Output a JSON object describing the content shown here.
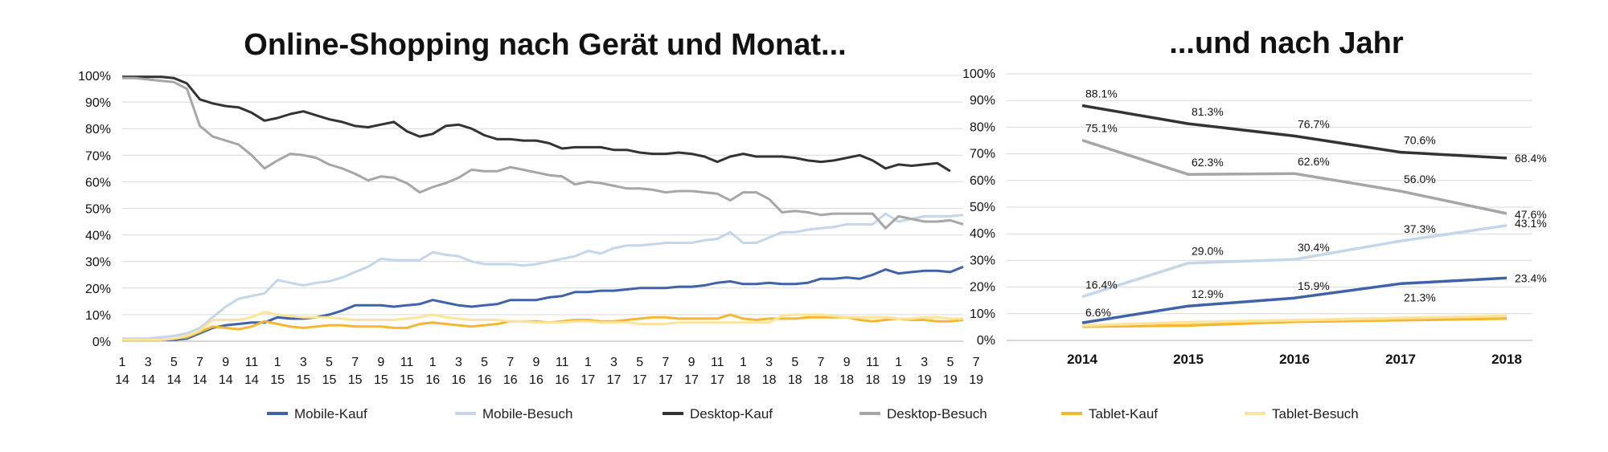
{
  "chart_data": [
    {
      "type": "line",
      "title": "Online-Shopping nach Gerät und Monat...",
      "xlabel": "",
      "ylabel": "",
      "ylim": [
        0,
        100
      ],
      "y_tick_labels": [
        "0%",
        "10%",
        "20%",
        "30%",
        "40%",
        "50%",
        "60%",
        "70%",
        "80%",
        "90%",
        "100%"
      ],
      "x_tick_labels": [
        [
          "1",
          "14"
        ],
        [
          "3",
          "14"
        ],
        [
          "5",
          "14"
        ],
        [
          "7",
          "14"
        ],
        [
          "9",
          "14"
        ],
        [
          "11",
          "14"
        ],
        [
          "1",
          "15"
        ],
        [
          "3",
          "15"
        ],
        [
          "5",
          "15"
        ],
        [
          "7",
          "15"
        ],
        [
          "9",
          "15"
        ],
        [
          "11",
          "15"
        ],
        [
          "1",
          "16"
        ],
        [
          "3",
          "16"
        ],
        [
          "5",
          "16"
        ],
        [
          "7",
          "16"
        ],
        [
          "9",
          "16"
        ],
        [
          "11",
          "16"
        ],
        [
          "1",
          "17"
        ],
        [
          "3",
          "17"
        ],
        [
          "5",
          "17"
        ],
        [
          "7",
          "17"
        ],
        [
          "9",
          "17"
        ],
        [
          "11",
          "17"
        ],
        [
          "1",
          "18"
        ],
        [
          "3",
          "18"
        ],
        [
          "5",
          "18"
        ],
        [
          "7",
          "18"
        ],
        [
          "9",
          "18"
        ],
        [
          "11",
          "18"
        ],
        [
          "1",
          "19"
        ],
        [
          "3",
          "19"
        ],
        [
          "5",
          "19"
        ],
        [
          "7",
          "19"
        ]
      ],
      "grid": "horizontal",
      "series": [
        {
          "name": "Mobile-Kauf",
          "color": "#3f62a8",
          "values": [
            0.5,
            0.5,
            0.5,
            0.5,
            0.5,
            1,
            3,
            5,
            6,
            6.5,
            7,
            7,
            9,
            8.5,
            8.5,
            9,
            10,
            11.5,
            13.5,
            13.5,
            13.5,
            13,
            13.5,
            14,
            15.5,
            14.5,
            13.5,
            13,
            13.5,
            14,
            15.5,
            15.5,
            15.5,
            16.5,
            17,
            18.5,
            18.5,
            19,
            19,
            19.5,
            20,
            20,
            20,
            20.5,
            20.5,
            21,
            22,
            22.5,
            21.5,
            21.5,
            22,
            21.5,
            21.5,
            22,
            23.5,
            23.5,
            24,
            23.5,
            25,
            27,
            25.5,
            26,
            26.5,
            26.5,
            26,
            28
          ]
        },
        {
          "name": "Mobile-Besuch",
          "color": "#c5d5ea",
          "values": [
            1,
            1,
            1,
            1.5,
            2,
            3,
            5,
            9,
            13,
            16,
            17,
            18,
            23,
            22,
            21,
            22,
            22.5,
            24,
            26,
            28,
            31,
            30.5,
            30.5,
            30.5,
            33.5,
            32.5,
            32,
            30,
            29,
            29,
            29,
            28.5,
            29,
            30,
            31,
            32,
            34,
            33,
            35,
            36,
            36,
            36.5,
            37,
            37,
            37,
            38,
            38.5,
            41,
            37,
            37,
            39,
            41,
            41,
            42,
            42.5,
            43,
            44,
            44,
            44,
            48,
            45,
            46,
            47,
            47,
            47,
            47.5
          ]
        },
        {
          "name": "Desktop-Kauf",
          "color": "#333333",
          "values": [
            99.5,
            99.5,
            99.5,
            99.5,
            99,
            97,
            91,
            89.5,
            88.5,
            88,
            86,
            83,
            84,
            85.5,
            86.5,
            85,
            83.5,
            82.5,
            81,
            80.5,
            81.5,
            82.5,
            79,
            77,
            78,
            81,
            81.5,
            80,
            77.5,
            76,
            76,
            75.5,
            75.5,
            74.5,
            72.5,
            73,
            73,
            73,
            72,
            72,
            71,
            70.5,
            70.5,
            71,
            70.5,
            69.5,
            67.5,
            69.5,
            70.5,
            69.5,
            69.5,
            69.5,
            69,
            68,
            67.5,
            68,
            69,
            70,
            68,
            65,
            66.5,
            66,
            66.5,
            67,
            64
          ]
        },
        {
          "name": "Desktop-Besuch",
          "color": "#a6a6a6",
          "values": [
            99,
            99,
            98.5,
            98,
            97.5,
            95,
            81,
            77,
            75.5,
            74,
            70,
            65,
            68,
            70.5,
            70,
            69,
            66.5,
            65,
            63,
            60.5,
            62,
            61.5,
            59.5,
            56,
            58,
            59.5,
            61.5,
            64.5,
            64,
            64,
            65.5,
            64.5,
            63.5,
            62.5,
            62,
            59,
            60,
            59.5,
            58.5,
            57.5,
            57.5,
            57,
            56,
            56.5,
            56.5,
            56,
            55.5,
            53,
            56,
            56,
            53.5,
            48.5,
            49,
            48.5,
            47.5,
            48,
            48,
            48,
            48,
            42.5,
            47,
            46,
            45,
            45,
            45.5,
            44
          ]
        },
        {
          "name": "Tablet-Kauf",
          "color": "#f3b733",
          "values": [
            0.5,
            0.5,
            0.5,
            0.5,
            1,
            1.5,
            3.5,
            5.5,
            5,
            4.5,
            5.5,
            7.5,
            6.5,
            5.5,
            5,
            5.5,
            6,
            6,
            5.5,
            5.5,
            5.5,
            5,
            5,
            6.5,
            7,
            6.5,
            6,
            5.5,
            6,
            6.5,
            7.5,
            7.5,
            7.5,
            7,
            7.5,
            8,
            8,
            7.5,
            7.5,
            8,
            8.5,
            9,
            9,
            8.5,
            8.5,
            8.5,
            8.5,
            10,
            8.5,
            8,
            8.5,
            8.5,
            8.5,
            9,
            9,
            9,
            9,
            8,
            7.5,
            8,
            8.5,
            8,
            8,
            7.5,
            7.5,
            8
          ]
        },
        {
          "name": "Tablet-Besuch",
          "color": "#fde49a",
          "values": [
            0.5,
            0.5,
            0.5,
            0.5,
            1,
            2,
            4,
            8,
            8,
            8,
            9,
            11,
            10,
            9.5,
            9,
            9,
            9,
            8.5,
            8,
            8,
            8,
            8,
            8.5,
            9,
            10,
            9,
            8.5,
            8,
            8,
            8,
            7.5,
            7.5,
            7,
            7,
            7,
            7.5,
            7.5,
            7,
            7,
            7,
            6.5,
            6.5,
            6.5,
            7,
            7,
            7,
            7,
            7,
            7,
            7,
            7,
            9.5,
            10,
            10,
            10,
            9.5,
            9,
            9,
            9,
            9,
            8.5,
            8.5,
            9,
            9,
            8.5,
            8.5
          ]
        }
      ],
      "legend": "bottom"
    },
    {
      "type": "line",
      "title": "...und nach Jahr",
      "xlabel": "",
      "ylabel": "",
      "ylim": [
        0,
        100
      ],
      "y_tick_labels": [
        "0%",
        "10%",
        "20%",
        "30%",
        "40%",
        "50%",
        "60%",
        "70%",
        "80%",
        "90%",
        "100%"
      ],
      "categories": [
        "2014",
        "2015",
        "2016",
        "2017",
        "2018"
      ],
      "grid": "horizontal",
      "series": [
        {
          "name": "Mobile-Kauf",
          "color": "#3f62a8",
          "values": [
            6.6,
            12.9,
            15.9,
            21.3,
            23.4
          ],
          "labels": [
            "6.6%",
            "12.9%",
            "15.9%",
            "21.3%",
            "23.4%"
          ]
        },
        {
          "name": "Mobile-Besuch",
          "color": "#c5d5ea",
          "values": [
            16.4,
            29.0,
            30.4,
            37.3,
            43.1
          ],
          "labels": [
            "16.4%",
            "29.0%",
            "30.4%",
            "37.3%",
            "43.1%"
          ]
        },
        {
          "name": "Desktop-Kauf",
          "color": "#333333",
          "values": [
            88.1,
            81.3,
            76.7,
            70.6,
            68.4
          ],
          "labels": [
            "88.1%",
            "81.3%",
            "76.7%",
            "70.6%",
            "68.4%"
          ]
        },
        {
          "name": "Desktop-Besuch",
          "color": "#a6a6a6",
          "values": [
            75.1,
            62.3,
            62.6,
            56.0,
            47.6
          ],
          "labels": [
            "75.1%",
            "62.3%",
            "62.6%",
            "56.0%",
            "47.6%"
          ]
        },
        {
          "name": "Tablet-Kauf",
          "color": "#f3b733",
          "values": [
            5.2,
            5.6,
            7.0,
            7.6,
            8.2
          ]
        },
        {
          "name": "Tablet-Besuch",
          "color": "#fde49a",
          "values": [
            5.6,
            6.8,
            7.6,
            8.4,
            9.2
          ]
        }
      ],
      "legend": "bottom"
    }
  ],
  "legend": {
    "items": [
      {
        "label": "Mobile-Kauf",
        "color": "#3f62a8"
      },
      {
        "label": "Mobile-Besuch",
        "color": "#c5d5ea"
      },
      {
        "label": "Desktop-Kauf",
        "color": "#333333"
      },
      {
        "label": "Desktop-Besuch",
        "color": "#a6a6a6"
      },
      {
        "label": "Tablet-Kauf",
        "color": "#f3b733"
      },
      {
        "label": "Tablet-Besuch",
        "color": "#fde49a"
      }
    ]
  }
}
